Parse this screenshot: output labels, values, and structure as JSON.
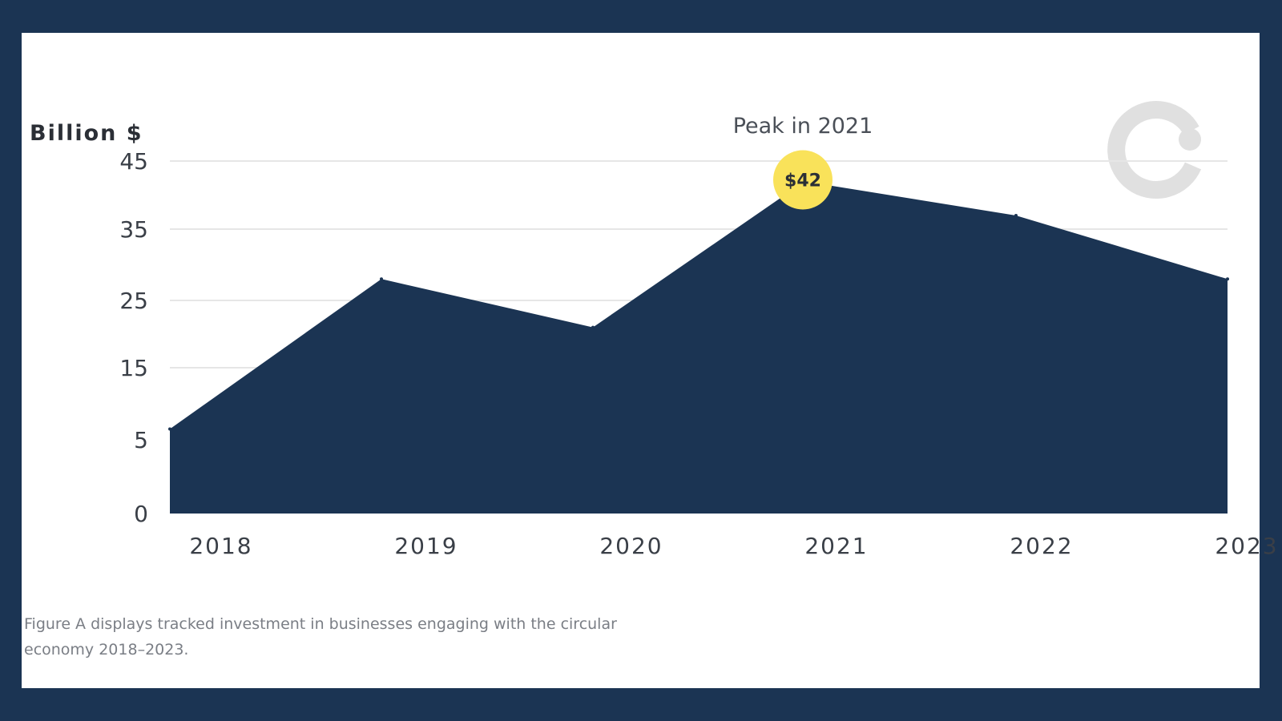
{
  "chart_data": {
    "type": "area",
    "ylabel": "Billion $",
    "xlabel": "",
    "x": [
      "2018",
      "2019",
      "2020",
      "2021",
      "2022",
      "2023"
    ],
    "values": [
      6.5,
      28,
      21,
      42,
      37,
      28
    ],
    "y_ticks": [
      0,
      5,
      15,
      25,
      35,
      45
    ],
    "ylim": [
      0,
      45
    ],
    "grid": true,
    "annotation": {
      "title": "Peak in 2021",
      "marker_label": "$42",
      "x": "2021",
      "value": 42
    },
    "colors": {
      "area": "#1b3453",
      "marker": "#f9e25a",
      "grid": "#e6e6e6",
      "watermark": "#e0e0e0"
    }
  },
  "caption": "Figure A displays tracked investment in businesses engaging with the circular economy 2018–2023."
}
